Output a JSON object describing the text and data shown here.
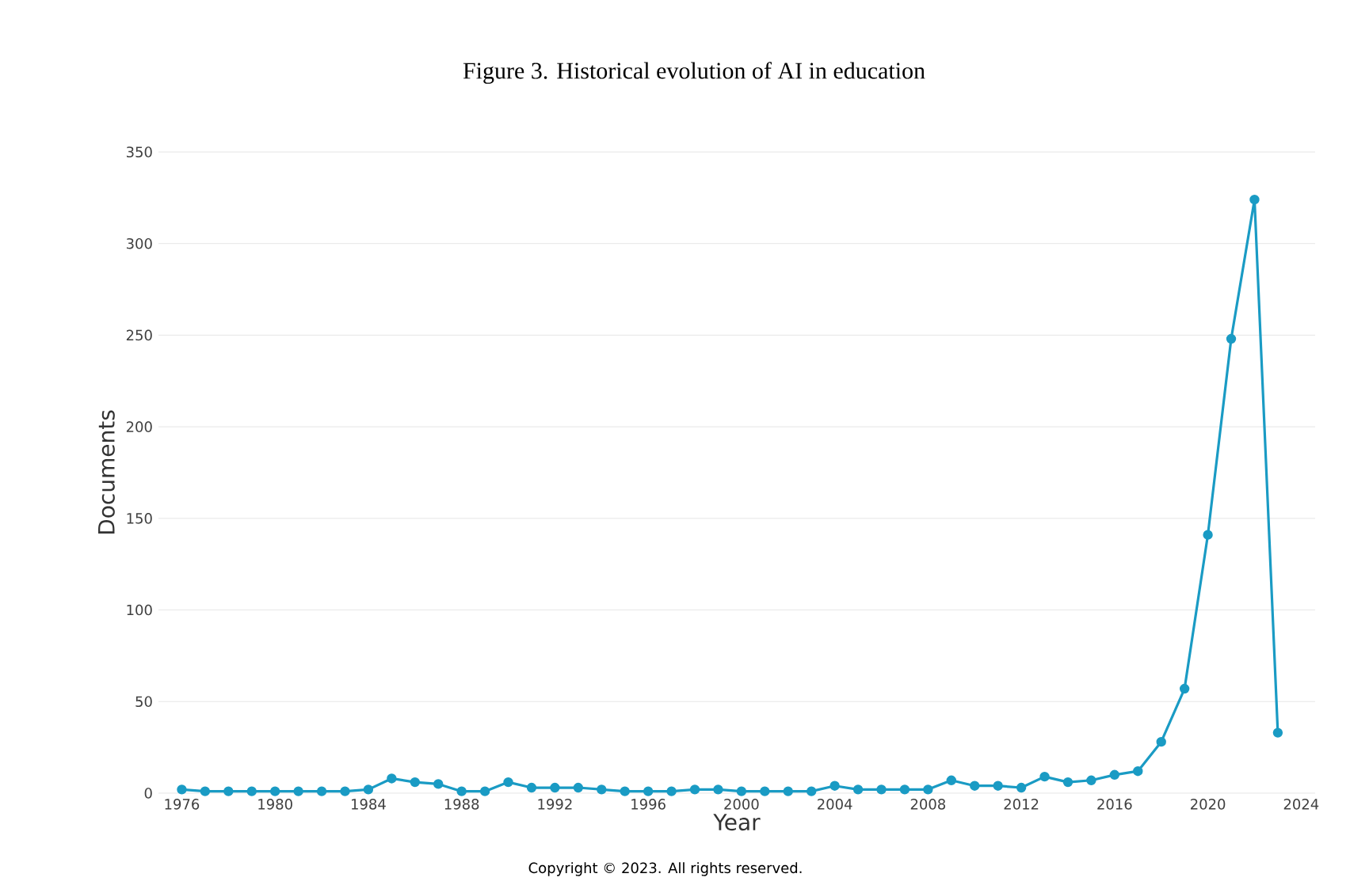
{
  "chart_data": {
    "type": "line",
    "title": "Figure 3. Historical evolution of AI in education",
    "xlabel": "Year",
    "ylabel": "Documents",
    "x": [
      1976,
      1977,
      1978,
      1979,
      1980,
      1981,
      1982,
      1983,
      1984,
      1985,
      1986,
      1987,
      1988,
      1989,
      1990,
      1991,
      1992,
      1993,
      1994,
      1995,
      1996,
      1997,
      1998,
      1999,
      2000,
      2001,
      2002,
      2003,
      2004,
      2005,
      2006,
      2007,
      2008,
      2009,
      2010,
      2011,
      2012,
      2013,
      2014,
      2015,
      2016,
      2017,
      2018,
      2019,
      2020,
      2021,
      2022,
      2023
    ],
    "series": [
      {
        "color": "#1a9bc4",
        "values": [
          2,
          1,
          1,
          1,
          1,
          1,
          1,
          1,
          2,
          8,
          6,
          5,
          1,
          1,
          6,
          3,
          3,
          3,
          2,
          1,
          1,
          1,
          2,
          2,
          1,
          1,
          1,
          1,
          4,
          2,
          2,
          2,
          2,
          7,
          4,
          4,
          3,
          9,
          6,
          7,
          10,
          12,
          28,
          57,
          141,
          248,
          324,
          33
        ]
      }
    ],
    "xlim": [
      1975,
      2024.6
    ],
    "ylim": [
      0,
      350
    ],
    "xticks": [
      1976,
      1980,
      1984,
      1988,
      1992,
      1996,
      2000,
      2004,
      2008,
      2012,
      2016,
      2020,
      2024
    ],
    "yticks": [
      0,
      50,
      100,
      150,
      200,
      250,
      300,
      350
    ],
    "grid": "y",
    "marker": "circle",
    "line_style": "solid",
    "annotations": [
      "Copyright © 2023. All rights reserved."
    ]
  }
}
